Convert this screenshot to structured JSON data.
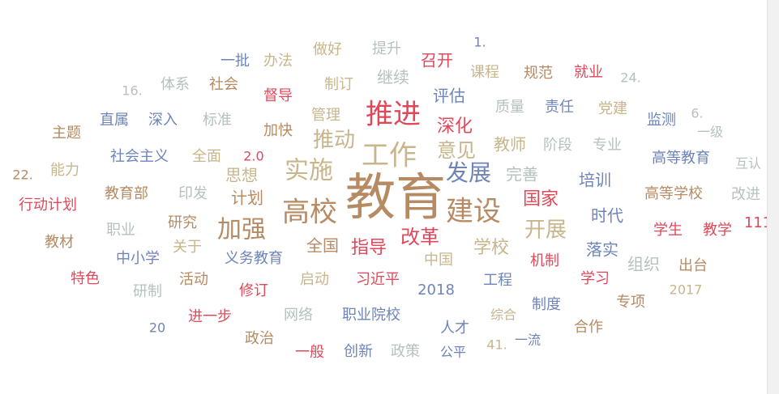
{
  "chart_data": {
    "type": "wordcloud",
    "palette": {
      "brown": "#b68a63",
      "beige": "#c8b58c",
      "red": "#e0485a",
      "blue": "#6e84b9",
      "grey": "#b5c2bb"
    },
    "words": [
      {
        "text": "教育",
        "color": "brown"
      },
      {
        "text": "工作",
        "color": "beige"
      },
      {
        "text": "推进",
        "color": "red"
      },
      {
        "text": "高校",
        "color": "brown"
      },
      {
        "text": "建设",
        "color": "brown"
      },
      {
        "text": "实施",
        "color": "beige"
      },
      {
        "text": "加强",
        "color": "brown"
      },
      {
        "text": "发展",
        "color": "blue"
      },
      {
        "text": "推动",
        "color": "beige"
      },
      {
        "text": "改革",
        "color": "red"
      },
      {
        "text": "开展",
        "color": "beige"
      },
      {
        "text": "意见",
        "color": "beige"
      },
      {
        "text": "深化",
        "color": "red"
      },
      {
        "text": "国家",
        "color": "red"
      },
      {
        "text": "学校",
        "color": "beige"
      },
      {
        "text": "指导",
        "color": "red"
      },
      {
        "text": "全国",
        "color": "brown"
      },
      {
        "text": "计划",
        "color": "brown"
      },
      {
        "text": "评估",
        "color": "blue"
      },
      {
        "text": "思想",
        "color": "beige"
      },
      {
        "text": "落实",
        "color": "blue"
      },
      {
        "text": "完善",
        "color": "grey"
      },
      {
        "text": "教师",
        "color": "beige"
      },
      {
        "text": "召开",
        "color": "red"
      },
      {
        "text": "提升",
        "color": "grey"
      },
      {
        "text": "做好",
        "color": "beige"
      },
      {
        "text": "办法",
        "color": "beige"
      },
      {
        "text": "一批",
        "color": "blue"
      },
      {
        "text": "1.",
        "color": "blue"
      },
      {
        "text": "课程",
        "color": "beige"
      },
      {
        "text": "规范",
        "color": "brown"
      },
      {
        "text": "就业",
        "color": "red"
      },
      {
        "text": "24.",
        "color": "grey"
      },
      {
        "text": "16.",
        "color": "grey"
      },
      {
        "text": "体系",
        "color": "grey"
      },
      {
        "text": "社会",
        "color": "brown"
      },
      {
        "text": "督导",
        "color": "red"
      },
      {
        "text": "制订",
        "color": "beige"
      },
      {
        "text": "继续",
        "color": "grey"
      },
      {
        "text": "质量",
        "color": "grey"
      },
      {
        "text": "责任",
        "color": "blue"
      },
      {
        "text": "党建",
        "color": "beige"
      },
      {
        "text": "6.",
        "color": "grey"
      },
      {
        "text": "主题",
        "color": "brown"
      },
      {
        "text": "直属",
        "color": "blue"
      },
      {
        "text": "深入",
        "color": "blue"
      },
      {
        "text": "标准",
        "color": "grey"
      },
      {
        "text": "管理",
        "color": "beige"
      },
      {
        "text": "加快",
        "color": "brown"
      },
      {
        "text": "监测",
        "color": "blue"
      },
      {
        "text": "一级",
        "color": "grey"
      },
      {
        "text": "阶段",
        "color": "grey"
      },
      {
        "text": "专业",
        "color": "grey"
      },
      {
        "text": "能力",
        "color": "beige"
      },
      {
        "text": "社会主义",
        "color": "blue"
      },
      {
        "text": "全面",
        "color": "beige"
      },
      {
        "text": "2.0",
        "color": "red"
      },
      {
        "text": "高等教育",
        "color": "blue"
      },
      {
        "text": "互认",
        "color": "grey"
      },
      {
        "text": "22.",
        "color": "brown"
      },
      {
        "text": "培训",
        "color": "blue"
      },
      {
        "text": "行动计划",
        "color": "red"
      },
      {
        "text": "教育部",
        "color": "brown"
      },
      {
        "text": "印发",
        "color": "grey"
      },
      {
        "text": "高等学校",
        "color": "brown"
      },
      {
        "text": "改进",
        "color": "grey"
      },
      {
        "text": "时代",
        "color": "blue"
      },
      {
        "text": "职业",
        "color": "grey"
      },
      {
        "text": "研究",
        "color": "brown"
      },
      {
        "text": "学生",
        "color": "red"
      },
      {
        "text": "教学",
        "color": "red"
      },
      {
        "text": "111",
        "color": "red"
      },
      {
        "text": "教材",
        "color": "brown"
      },
      {
        "text": "关于",
        "color": "beige"
      },
      {
        "text": "中小学",
        "color": "blue"
      },
      {
        "text": "义务教育",
        "color": "blue"
      },
      {
        "text": "中国",
        "color": "beige"
      },
      {
        "text": "机制",
        "color": "red"
      },
      {
        "text": "组织",
        "color": "grey"
      },
      {
        "text": "出台",
        "color": "brown"
      },
      {
        "text": "特色",
        "color": "red"
      },
      {
        "text": "活动",
        "color": "brown"
      },
      {
        "text": "启动",
        "color": "beige"
      },
      {
        "text": "习近平",
        "color": "red"
      },
      {
        "text": "工程",
        "color": "blue"
      },
      {
        "text": "学习",
        "color": "red"
      },
      {
        "text": "研制",
        "color": "grey"
      },
      {
        "text": "修订",
        "color": "red"
      },
      {
        "text": "2018",
        "color": "blue"
      },
      {
        "text": "2017",
        "color": "beige"
      },
      {
        "text": "进一步",
        "color": "red"
      },
      {
        "text": "网络",
        "color": "grey"
      },
      {
        "text": "职业院校",
        "color": "blue"
      },
      {
        "text": "制度",
        "color": "blue"
      },
      {
        "text": "专项",
        "color": "brown"
      },
      {
        "text": "综合",
        "color": "beige"
      },
      {
        "text": "20",
        "color": "blue"
      },
      {
        "text": "人才",
        "color": "blue"
      },
      {
        "text": "合作",
        "color": "brown"
      },
      {
        "text": "政治",
        "color": "brown"
      },
      {
        "text": "一般",
        "color": "red"
      },
      {
        "text": "创新",
        "color": "blue"
      },
      {
        "text": "政策",
        "color": "grey"
      },
      {
        "text": "公平",
        "color": "blue"
      },
      {
        "text": "41.",
        "color": "beige"
      },
      {
        "text": "一流",
        "color": "blue"
      }
    ]
  }
}
